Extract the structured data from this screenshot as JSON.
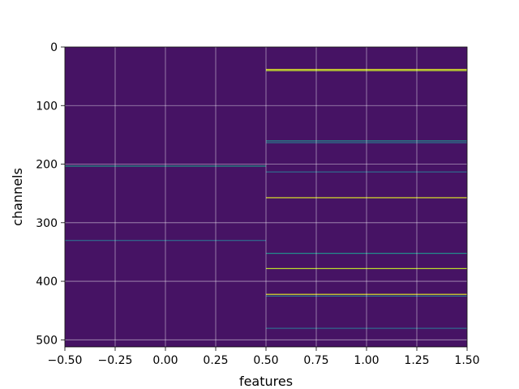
{
  "chart_data": {
    "type": "heatmap",
    "title": "",
    "xlabel": "features",
    "ylabel": "channels",
    "xlim": [
      -0.5,
      1.5
    ],
    "ylim": [
      512,
      0
    ],
    "y_inverted": true,
    "x_ticks": [
      -0.5,
      -0.25,
      0.0,
      0.25,
      0.5,
      0.75,
      1.0,
      1.25,
      1.5
    ],
    "x_tick_labels": [
      "−0.50",
      "−0.25",
      "0.00",
      "0.25",
      "0.50",
      "0.75",
      "1.00",
      "1.25",
      "1.50"
    ],
    "y_ticks": [
      0,
      100,
      200,
      300,
      400,
      500
    ],
    "y_tick_labels": [
      "0",
      "100",
      "200",
      "300",
      "400",
      "500"
    ],
    "grid": true,
    "colormap": "viridis",
    "columns": [
      0,
      1
    ],
    "rows": 512,
    "value_range": [
      0,
      1
    ],
    "background_value": 0.05,
    "highlighted_cells": [
      {
        "column": 0,
        "row": 203,
        "value": 0.55
      },
      {
        "column": 0,
        "row": 330,
        "value": 0.35
      },
      {
        "column": 1,
        "row": 38,
        "value": 0.95
      },
      {
        "column": 1,
        "row": 40,
        "value": 0.9
      },
      {
        "column": 1,
        "row": 160,
        "value": 0.5
      },
      {
        "column": 1,
        "row": 163,
        "value": 0.4
      },
      {
        "column": 1,
        "row": 213,
        "value": 0.35
      },
      {
        "column": 1,
        "row": 257,
        "value": 0.95
      },
      {
        "column": 1,
        "row": 352,
        "value": 0.5
      },
      {
        "column": 1,
        "row": 378,
        "value": 0.9
      },
      {
        "column": 1,
        "row": 422,
        "value": 0.95
      },
      {
        "column": 1,
        "row": 425,
        "value": 0.4
      },
      {
        "column": 1,
        "row": 480,
        "value": 0.35
      }
    ]
  }
}
